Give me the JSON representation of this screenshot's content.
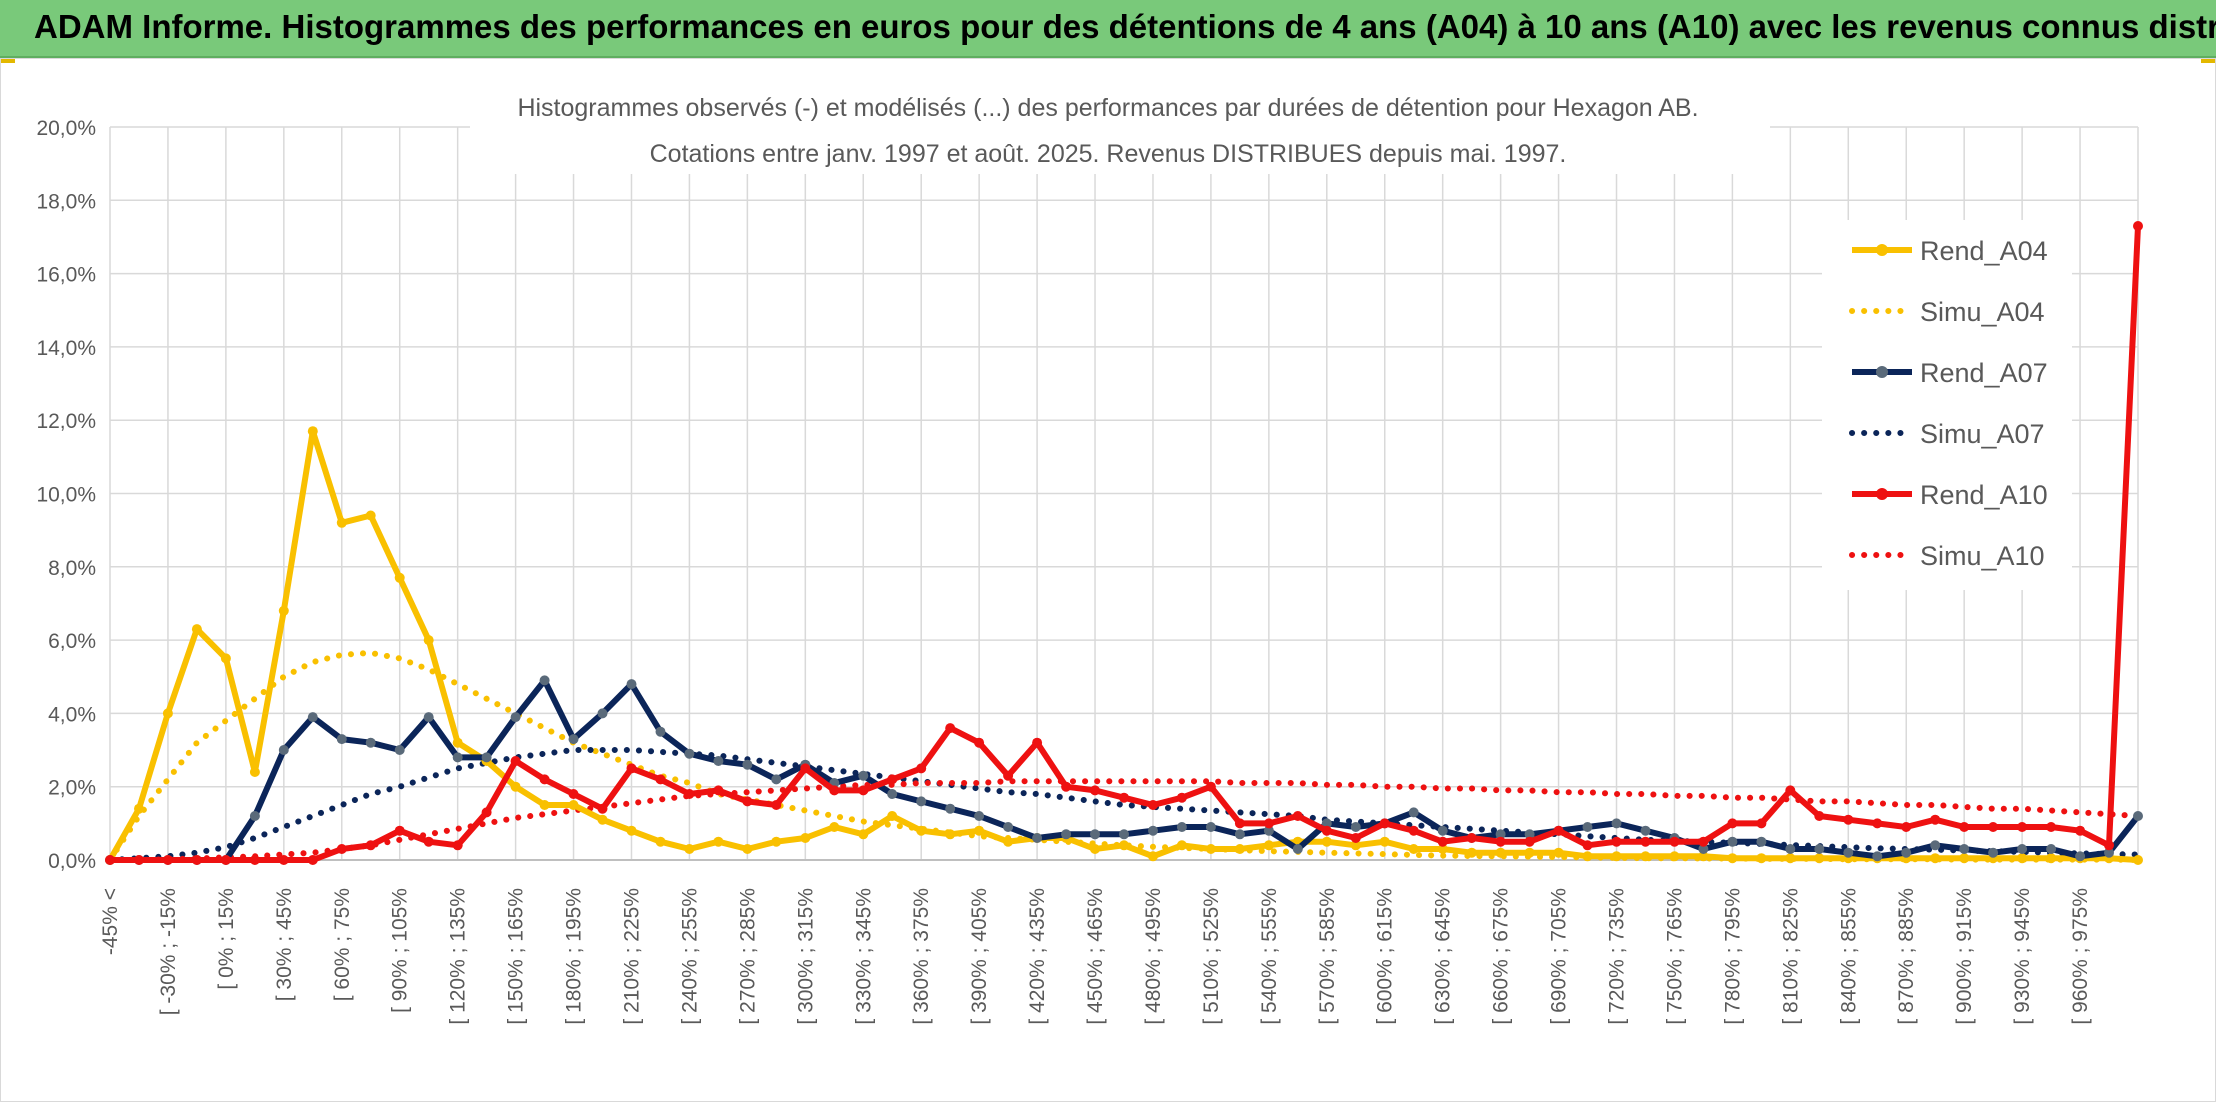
{
  "banner": {
    "title": "ADAM Informe. Histogrammes des performances en euros pour des détentions de 4 ans (A04) à 10 ans (A10) avec les revenus connus distribués"
  },
  "chart_data": {
    "type": "line",
    "title_line1": "Histogrammes observés (-) et modélisés (...) des performances par durées de détention pour Hexagon AB.",
    "title_line2": "Cotations entre janv. 1997 et août. 2025. Revenus DISTRIBUES depuis mai. 1997.",
    "xlabel": "",
    "ylabel": "",
    "ylim": [
      0,
      20
    ],
    "y_ticks": [
      "0,0%",
      "2,0%",
      "4,0%",
      "6,0%",
      "8,0%",
      "10,0%",
      "12,0%",
      "14,0%",
      "16,0%",
      "18,0%",
      "20,0%"
    ],
    "x_tick_labels": [
      "-45% <",
      "[ -30% ; -15%",
      "[ 0% ; 15%",
      "[ 30% ; 45%",
      "[ 60% ; 75%",
      "[ 90% ; 105%",
      "[ 120% ; 135%",
      "[ 150% ; 165%",
      "[ 180% ; 195%",
      "[ 210% ; 225%",
      "[ 240% ; 255%",
      "[ 270% ; 285%",
      "[ 300% ; 315%",
      "[ 330% ; 345%",
      "[ 360% ; 375%",
      "[ 390% ; 405%",
      "[ 420% ; 435%",
      "[ 450% ; 465%",
      "[ 480% ; 495%",
      "[ 510% ; 525%",
      "[ 540% ; 555%",
      "[ 570% ; 585%",
      "[ 600% ; 615%",
      "[ 630% ; 645%",
      "[ 660% ; 675%",
      "[ 690% ; 705%",
      "[ 720% ; 735%",
      "[ 750% ; 765%",
      "[ 780% ; 795%",
      "[ 810% ; 825%",
      "[ 840% ; 855%",
      "[ 870% ; 885%",
      "[ 900% ; 915%",
      "[ 930% ; 945%",
      "[ 960% ; 975%"
    ],
    "grid": true,
    "legend_position": "right",
    "colors": {
      "A04": "#f9c000",
      "A07": "#0b2559",
      "A10": "#ee1111",
      "marker_A07": "#5a6a7a"
    },
    "series": [
      {
        "name": "Rend_A04",
        "style": "solid-marker",
        "color": "#f9c000",
        "values": [
          0.0,
          1.4,
          4.0,
          6.3,
          5.5,
          2.4,
          6.8,
          11.7,
          9.2,
          9.4,
          7.7,
          6.0,
          3.2,
          2.7,
          2.0,
          1.5,
          1.5,
          1.1,
          0.8,
          0.5,
          0.3,
          0.5,
          0.3,
          0.5,
          0.6,
          0.9,
          0.7,
          1.2,
          0.8,
          0.7,
          0.8,
          0.5,
          0.6,
          0.6,
          0.3,
          0.4,
          0.1,
          0.4,
          0.3,
          0.3,
          0.4,
          0.5,
          0.5,
          0.4,
          0.5,
          0.3,
          0.3,
          0.2,
          0.2,
          0.2,
          0.2,
          0.1,
          0.1,
          0.1,
          0.1,
          0.1,
          0.05,
          0.05,
          0.05,
          0.05,
          0.05,
          0.05,
          0.05,
          0.05,
          0.05,
          0.05,
          0.05,
          0.05,
          0.05,
          0.05,
          0.0
        ]
      },
      {
        "name": "Simu_A04",
        "style": "dotted",
        "color": "#f9c000",
        "values": [
          0.0,
          1.2,
          2.2,
          3.2,
          3.8,
          4.4,
          5.0,
          5.4,
          5.6,
          5.65,
          5.5,
          5.2,
          4.8,
          4.4,
          4.0,
          3.6,
          3.2,
          2.9,
          2.6,
          2.3,
          2.1,
          1.8,
          1.65,
          1.5,
          1.35,
          1.2,
          1.05,
          0.95,
          0.85,
          0.75,
          0.65,
          0.6,
          0.55,
          0.5,
          0.45,
          0.4,
          0.36,
          0.33,
          0.3,
          0.27,
          0.24,
          0.22,
          0.2,
          0.18,
          0.16,
          0.14,
          0.12,
          0.11,
          0.1,
          0.09,
          0.08,
          0.07,
          0.06,
          0.05,
          0.05,
          0.04,
          0.04,
          0.03,
          0.03,
          0.03,
          0.02,
          0.02,
          0.02,
          0.02,
          0.01,
          0.01,
          0.01,
          0.01,
          0.01,
          0.01,
          0.0
        ]
      },
      {
        "name": "Rend_A07",
        "style": "solid-marker",
        "color": "#0b2559",
        "values": [
          0.0,
          0.0,
          0.0,
          0.0,
          0.0,
          1.2,
          3.0,
          3.9,
          3.3,
          3.2,
          3.0,
          3.9,
          2.8,
          2.8,
          3.9,
          4.9,
          3.3,
          4.0,
          4.8,
          3.5,
          2.9,
          2.7,
          2.6,
          2.2,
          2.6,
          2.1,
          2.3,
          1.8,
          1.6,
          1.4,
          1.2,
          0.9,
          0.6,
          0.7,
          0.7,
          0.7,
          0.8,
          0.9,
          0.9,
          0.7,
          0.8,
          0.3,
          1.0,
          0.9,
          1.0,
          1.3,
          0.8,
          0.6,
          0.7,
          0.7,
          0.8,
          0.9,
          1.0,
          0.8,
          0.6,
          0.3,
          0.5,
          0.5,
          0.3,
          0.3,
          0.2,
          0.1,
          0.2,
          0.4,
          0.3,
          0.2,
          0.3,
          0.3,
          0.1,
          0.2,
          1.2
        ]
      },
      {
        "name": "Simu_A07",
        "style": "dotted",
        "color": "#0b2559",
        "values": [
          0.0,
          0.05,
          0.1,
          0.2,
          0.35,
          0.6,
          0.9,
          1.2,
          1.5,
          1.8,
          2.0,
          2.25,
          2.5,
          2.65,
          2.8,
          2.9,
          3.0,
          3.0,
          3.0,
          2.95,
          2.9,
          2.85,
          2.75,
          2.65,
          2.55,
          2.45,
          2.35,
          2.25,
          2.15,
          2.05,
          1.95,
          1.85,
          1.8,
          1.7,
          1.6,
          1.5,
          1.45,
          1.4,
          1.35,
          1.3,
          1.25,
          1.2,
          1.1,
          1.05,
          1.0,
          0.95,
          0.9,
          0.85,
          0.8,
          0.75,
          0.7,
          0.65,
          0.6,
          0.55,
          0.52,
          0.5,
          0.47,
          0.44,
          0.41,
          0.38,
          0.35,
          0.32,
          0.3,
          0.28,
          0.26,
          0.24,
          0.22,
          0.2,
          0.18,
          0.16,
          0.15
        ]
      },
      {
        "name": "Rend_A10",
        "style": "solid-marker",
        "color": "#ee1111",
        "values": [
          0.0,
          0.0,
          0.0,
          0.0,
          0.0,
          0.0,
          0.0,
          0.0,
          0.3,
          0.4,
          0.8,
          0.5,
          0.4,
          1.3,
          2.7,
          2.2,
          1.8,
          1.4,
          2.5,
          2.2,
          1.8,
          1.9,
          1.6,
          1.5,
          2.5,
          1.9,
          1.9,
          2.2,
          2.5,
          3.6,
          3.2,
          2.3,
          3.2,
          2.0,
          1.9,
          1.7,
          1.5,
          1.7,
          2.0,
          1.0,
          1.0,
          1.2,
          0.8,
          0.6,
          1.0,
          0.8,
          0.5,
          0.6,
          0.5,
          0.5,
          0.8,
          0.4,
          0.5,
          0.5,
          0.5,
          0.5,
          1.0,
          1.0,
          1.9,
          1.2,
          1.1,
          1.0,
          0.9,
          1.1,
          0.9,
          0.9,
          0.9,
          0.9,
          0.8,
          0.4,
          17.3
        ]
      },
      {
        "name": "Simu_A10",
        "style": "dotted",
        "color": "#ee1111",
        "values": [
          0.0,
          0.0,
          0.02,
          0.04,
          0.07,
          0.1,
          0.15,
          0.2,
          0.3,
          0.4,
          0.55,
          0.7,
          0.85,
          1.0,
          1.15,
          1.25,
          1.35,
          1.45,
          1.55,
          1.65,
          1.75,
          1.8,
          1.85,
          1.9,
          1.95,
          2.0,
          2.05,
          2.05,
          2.1,
          2.1,
          2.1,
          2.15,
          2.15,
          2.15,
          2.15,
          2.15,
          2.15,
          2.15,
          2.15,
          2.1,
          2.1,
          2.1,
          2.05,
          2.05,
          2.0,
          2.0,
          1.95,
          1.95,
          1.9,
          1.9,
          1.85,
          1.85,
          1.8,
          1.8,
          1.75,
          1.75,
          1.7,
          1.7,
          1.65,
          1.6,
          1.6,
          1.55,
          1.5,
          1.5,
          1.45,
          1.4,
          1.4,
          1.35,
          1.3,
          1.25,
          1.2
        ]
      }
    ]
  }
}
